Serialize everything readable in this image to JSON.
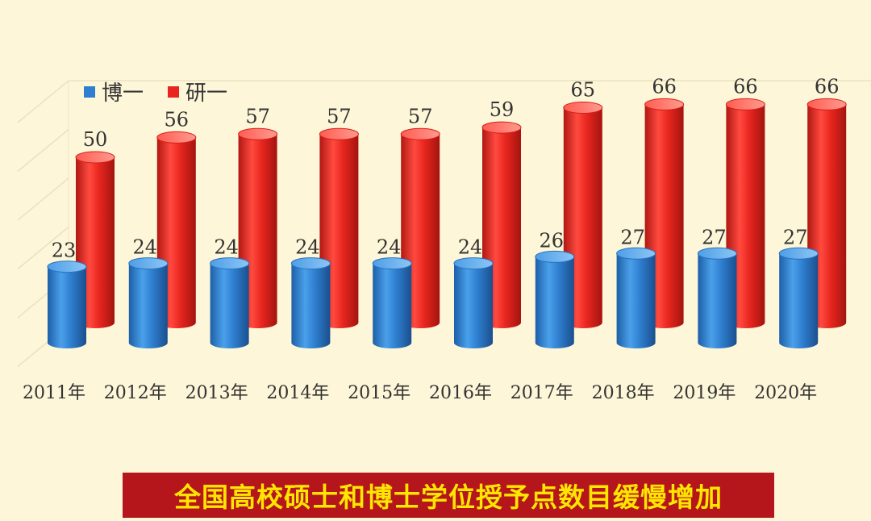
{
  "chart_data": {
    "type": "bar",
    "categories": [
      "2011年",
      "2012年",
      "2013年",
      "2014年",
      "2015年",
      "2016年",
      "2017年",
      "2018年",
      "2019年",
      "2020年"
    ],
    "series": [
      {
        "name": "博一",
        "color": "#2f7fd0",
        "values": [
          23,
          24,
          24,
          24,
          24,
          24,
          26,
          27,
          27,
          27
        ]
      },
      {
        "name": "研一",
        "color": "#e8261f",
        "values": [
          50,
          56,
          57,
          57,
          57,
          59,
          65,
          66,
          66,
          66
        ]
      }
    ],
    "ylim": [
      0,
      80
    ],
    "grid": true,
    "legend": "top-left",
    "title": "",
    "xlabel": "",
    "ylabel": ""
  },
  "caption": "全国高校硕士和博士学位授予点数目缓慢增加",
  "colors": {
    "background": "#fdf6d8",
    "caption_bg": "#b5161c",
    "caption_text": "#ffe600"
  }
}
